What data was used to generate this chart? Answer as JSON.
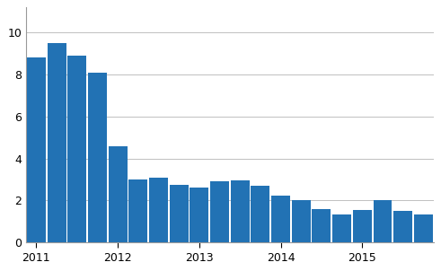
{
  "values": [
    8.8,
    9.5,
    8.9,
    8.1,
    4.6,
    3.0,
    3.1,
    2.75,
    2.6,
    2.9,
    2.95,
    2.7,
    2.25,
    2.0,
    1.6,
    1.35,
    1.55,
    2.0,
    1.5,
    1.35
  ],
  "bar_color": "#2272b4",
  "year_labels": [
    "2011",
    "2012",
    "2013",
    "2014",
    "2015"
  ],
  "year_tick_positions": [
    0,
    4,
    8,
    12,
    16
  ],
  "yticks": [
    0,
    2,
    4,
    6,
    8,
    10
  ],
  "ylim": [
    0,
    11.2
  ],
  "xlim_left": -0.5,
  "xlim_right": 19.5,
  "background_color": "#ffffff",
  "grid_color": "#c0c0c0",
  "bar_width": 0.92,
  "figwidth": 4.91,
  "figheight": 3.02,
  "dpi": 100
}
